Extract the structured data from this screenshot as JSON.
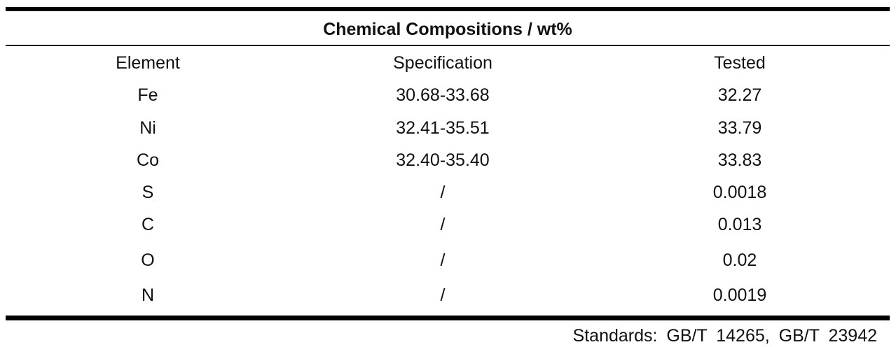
{
  "table": {
    "title": "Chemical Compositions / wt%",
    "header": [
      "Element",
      "Specification",
      "Tested"
    ],
    "rows": [
      [
        "Fe",
        "30.68-33.68",
        "32.27"
      ],
      [
        "Ni",
        "32.41-35.51",
        "33.79"
      ],
      [
        "Co",
        "32.40-35.40",
        "33.83"
      ],
      [
        "S",
        "/",
        "0.0018"
      ],
      [
        "C",
        "/",
        "0.013"
      ],
      [
        "O",
        "/",
        "0.02"
      ],
      [
        "N",
        "/",
        "0.0019"
      ]
    ],
    "note": "Standards: GB/T 14265, GB/T 23942"
  }
}
